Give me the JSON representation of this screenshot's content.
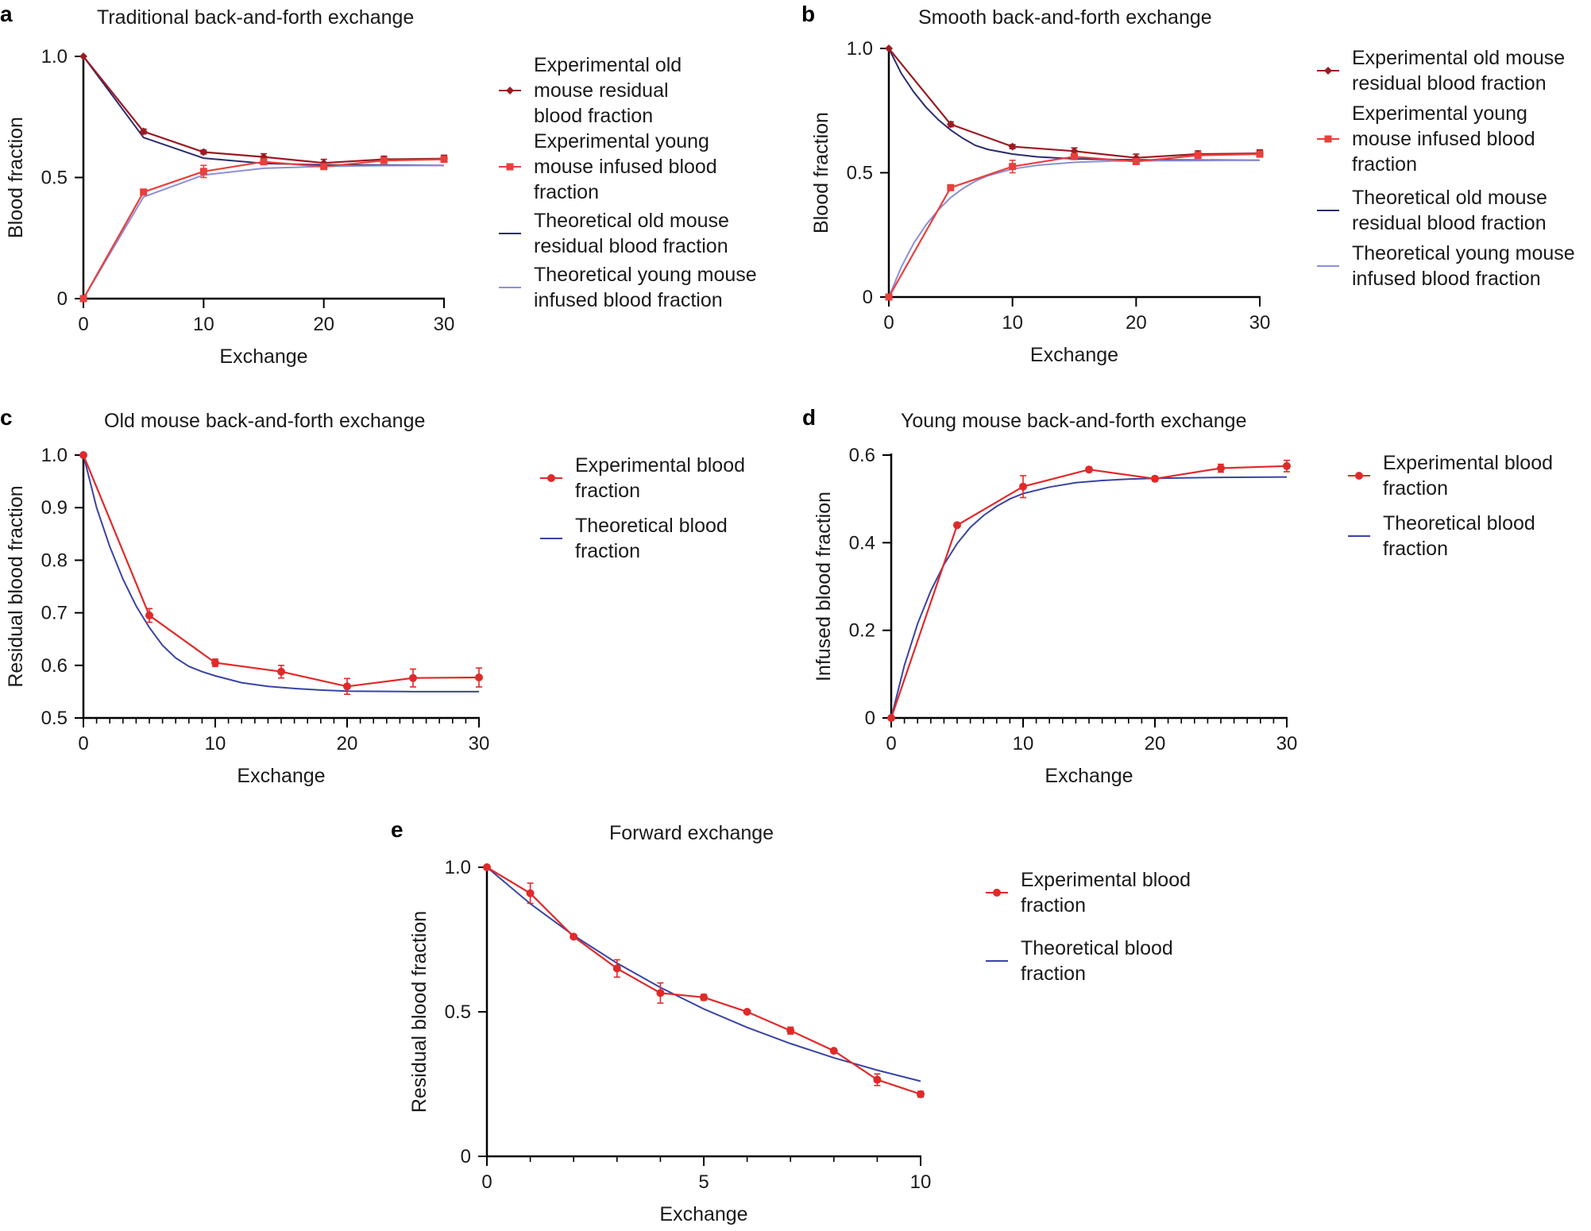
{
  "colors": {
    "exp_old": "#9b1b22",
    "exp_young": "#e8403c",
    "exp": "#e02a2a",
    "theo_old": "#2b2d6e",
    "theo_young": "#8b90d6",
    "theo": "#3a44a3"
  },
  "chart_data": [
    {
      "id": "a",
      "type": "line",
      "label": "a",
      "title": "Traditional back-and-forth exchange",
      "xlabel": "Exchange",
      "ylabel": "Blood fraction",
      "xlim": [
        0,
        30
      ],
      "ylim": [
        0,
        1.0
      ],
      "xticks": [
        "0",
        "10",
        "20",
        "30"
      ],
      "yticks": [
        "0",
        "0.5",
        "1.0"
      ],
      "series": [
        {
          "name": "Experimental old mouse residual blood fraction",
          "legend": [
            "Experimental old",
            "mouse residual",
            "blood fraction"
          ],
          "color": "#9b1b22",
          "marker": "diamond",
          "x": [
            0,
            5,
            10,
            15,
            20,
            25,
            30
          ],
          "y": [
            1.0,
            0.69,
            0.605,
            0.585,
            0.56,
            0.575,
            0.578
          ],
          "err": [
            0,
            0.01,
            0.008,
            0.013,
            0.015,
            0.013,
            0.014
          ]
        },
        {
          "name": "Experimental young mouse infused blood fraction",
          "legend": [
            "Experimental young",
            "mouse infused blood",
            " fraction"
          ],
          "color": "#e8403c",
          "marker": "square",
          "x": [
            0,
            5,
            10,
            15,
            20,
            25,
            30
          ],
          "y": [
            0,
            0.44,
            0.525,
            0.565,
            0.545,
            0.57,
            0.575
          ],
          "err": [
            0,
            0.005,
            0.025,
            0.01,
            0.01,
            0.01,
            0.012
          ]
        },
        {
          "name": "Theoretical old mouse residual blood fraction",
          "legend": [
            "Theoretical old mouse",
            "residual blood fraction"
          ],
          "color": "#2b2d6e",
          "x": [
            0,
            5,
            10,
            15,
            20,
            25,
            30
          ],
          "y": [
            1.0,
            0.665,
            0.58,
            0.558,
            0.552,
            0.551,
            0.55
          ]
        },
        {
          "name": "Theoretical young mouse infused blood fraction",
          "legend": [
            "Theoretical young mouse",
            "infused blood fraction"
          ],
          "color": "#8b90d6",
          "x": [
            0,
            5,
            10,
            15,
            20,
            25,
            30
          ],
          "y": [
            0,
            0.42,
            0.51,
            0.538,
            0.546,
            0.549,
            0.55
          ]
        }
      ]
    },
    {
      "id": "b",
      "type": "line",
      "label": "b",
      "title": "Smooth back-and-forth exchange",
      "xlabel": "Exchange",
      "ylabel": "Blood fraction",
      "xlim": [
        0,
        30
      ],
      "ylim": [
        0,
        1.0
      ],
      "xticks": [
        "0",
        "10",
        "20",
        "30"
      ],
      "yticks": [
        "0",
        "0.5",
        "1.0"
      ],
      "series": [
        {
          "name": "Experimental old mouse residual blood fraction",
          "legend": [
            "Experimental old mouse",
            "residual blood fraction"
          ],
          "color": "#9b1b22",
          "marker": "diamond",
          "x": [
            0,
            5,
            10,
            15,
            20,
            25,
            30
          ],
          "y": [
            1.0,
            0.695,
            0.605,
            0.587,
            0.56,
            0.575,
            0.578
          ],
          "err": [
            0,
            0.01,
            0.008,
            0.013,
            0.015,
            0.013,
            0.014
          ]
        },
        {
          "name": "Experimental young mouse infused blood fraction",
          "legend": [
            "Experimental young",
            "mouse infused blood",
            " fraction"
          ],
          "color": "#e8403c",
          "marker": "square",
          "x": [
            0,
            5,
            10,
            15,
            20,
            25,
            30
          ],
          "y": [
            0,
            0.44,
            0.525,
            0.565,
            0.545,
            0.57,
            0.575
          ],
          "err": [
            0,
            0.005,
            0.025,
            0.01,
            0.01,
            0.01,
            0.012
          ]
        },
        {
          "name": "Theoretical old mouse residual blood fraction",
          "legend": [
            "Theoretical old mouse",
            "residual blood fraction"
          ],
          "color": "#2b2d6e",
          "x": [
            0,
            1,
            2,
            3,
            4,
            5,
            6,
            7,
            8,
            10,
            12,
            15,
            18,
            20,
            25,
            30
          ],
          "y": [
            1.0,
            0.9,
            0.826,
            0.764,
            0.713,
            0.672,
            0.638,
            0.61,
            0.594,
            0.575,
            0.564,
            0.556,
            0.553,
            0.552,
            0.551,
            0.55
          ]
        },
        {
          "name": "Theoretical young mouse infused blood fraction",
          "legend": [
            "Theoretical young mouse",
            "infused blood fraction"
          ],
          "color": "#8b90d6",
          "x": [
            0,
            1,
            2,
            3,
            4,
            5,
            6,
            7,
            8,
            10,
            12,
            15,
            18,
            20,
            25,
            30
          ],
          "y": [
            0,
            0.12,
            0.215,
            0.29,
            0.35,
            0.4,
            0.437,
            0.466,
            0.488,
            0.515,
            0.53,
            0.542,
            0.547,
            0.548,
            0.549,
            0.55
          ]
        }
      ]
    },
    {
      "id": "c",
      "type": "line",
      "label": "c",
      "title": "Old mouse back-and-forth exchange",
      "xlabel": "Exchange",
      "ylabel": "Residual blood fraction",
      "xlim": [
        0,
        30
      ],
      "ylim": [
        0.5,
        1.0
      ],
      "xticks": [
        "0",
        "10",
        "20",
        "30"
      ],
      "yticks": [
        "0.5",
        "0.6",
        "0.7",
        "0.8",
        "0.9",
        "1.0"
      ],
      "series": [
        {
          "name": "Experimental blood fraction",
          "legend": [
            "Experimental blood",
            "fraction"
          ],
          "color": "#e02a2a",
          "marker": "circle",
          "x": [
            0,
            5,
            10,
            15,
            20,
            25,
            30
          ],
          "y": [
            1.0,
            0.695,
            0.605,
            0.588,
            0.56,
            0.576,
            0.577
          ],
          "err": [
            0,
            0.013,
            0.007,
            0.012,
            0.015,
            0.017,
            0.018
          ]
        },
        {
          "name": "Theoretical blood fraction",
          "legend": [
            "Theoretical blood",
            "fraction"
          ],
          "color": "#3a44a3",
          "x": [
            0,
            1,
            2,
            3,
            4,
            5,
            6,
            7,
            8,
            9,
            10,
            12,
            14,
            16,
            18,
            20,
            25,
            30
          ],
          "y": [
            1.0,
            0.9,
            0.826,
            0.764,
            0.713,
            0.672,
            0.638,
            0.614,
            0.598,
            0.588,
            0.58,
            0.567,
            0.56,
            0.556,
            0.553,
            0.551,
            0.55,
            0.55
          ]
        }
      ]
    },
    {
      "id": "d",
      "type": "line",
      "label": "d",
      "title": "Young mouse back-and-forth exchange",
      "xlabel": "Exchange",
      "ylabel": "Infused blood fraction",
      "xlim": [
        0,
        30
      ],
      "ylim": [
        0,
        0.6
      ],
      "xticks": [
        "0",
        "10",
        "20",
        "30"
      ],
      "yticks": [
        "0",
        "0.2",
        "0.4",
        "0.6"
      ],
      "series": [
        {
          "name": "Experimental blood fraction",
          "legend": [
            "Experimental blood",
            "fraction"
          ],
          "color": "#e02a2a",
          "marker": "circle",
          "x": [
            0,
            5,
            10,
            15,
            20,
            25,
            30
          ],
          "y": [
            0,
            0.44,
            0.528,
            0.567,
            0.546,
            0.57,
            0.575
          ],
          "err": [
            0,
            0.004,
            0.025,
            0.005,
            0.005,
            0.009,
            0.013
          ]
        },
        {
          "name": "Theoretical blood fraction",
          "legend": [
            "Theoretical blood",
            "fraction"
          ],
          "color": "#3a44a3",
          "x": [
            0,
            1,
            2,
            3,
            4,
            5,
            6,
            7,
            8,
            9,
            10,
            12,
            14,
            16,
            18,
            20,
            25,
            30
          ],
          "y": [
            0,
            0.12,
            0.215,
            0.29,
            0.35,
            0.398,
            0.435,
            0.462,
            0.483,
            0.5,
            0.512,
            0.527,
            0.537,
            0.542,
            0.545,
            0.547,
            0.549,
            0.55
          ]
        }
      ]
    },
    {
      "id": "e",
      "type": "line",
      "label": "e",
      "title": "Forward exchange",
      "xlabel": "Exchange",
      "ylabel": "Residual blood fraction",
      "xlim": [
        0,
        10
      ],
      "ylim": [
        0,
        1.0
      ],
      "xticks": [
        "0",
        "5",
        "10"
      ],
      "yticks": [
        "0",
        "0.5",
        "1.0"
      ],
      "series": [
        {
          "name": "Experimental blood fraction",
          "legend": [
            "Experimental blood",
            "fraction"
          ],
          "color": "#e02a2a",
          "marker": "circle",
          "x": [
            0,
            1,
            2,
            3,
            4,
            5,
            6,
            7,
            8,
            9,
            10
          ],
          "y": [
            1.0,
            0.91,
            0.76,
            0.65,
            0.565,
            0.55,
            0.5,
            0.435,
            0.365,
            0.265,
            0.215
          ],
          "err": [
            0,
            0.035,
            0.005,
            0.03,
            0.035,
            0.01,
            0.005,
            0.012,
            0.005,
            0.02,
            0.01
          ]
        },
        {
          "name": "Theoretical blood fraction",
          "legend": [
            "Theoretical blood",
            "fraction"
          ],
          "color": "#3a44a3",
          "x": [
            0,
            1,
            2,
            3,
            4,
            5,
            6,
            7,
            8,
            9,
            10
          ],
          "y": [
            1.0,
            0.874,
            0.764,
            0.668,
            0.584,
            0.51,
            0.446,
            0.39,
            0.341,
            0.298,
            0.26
          ]
        }
      ]
    }
  ]
}
